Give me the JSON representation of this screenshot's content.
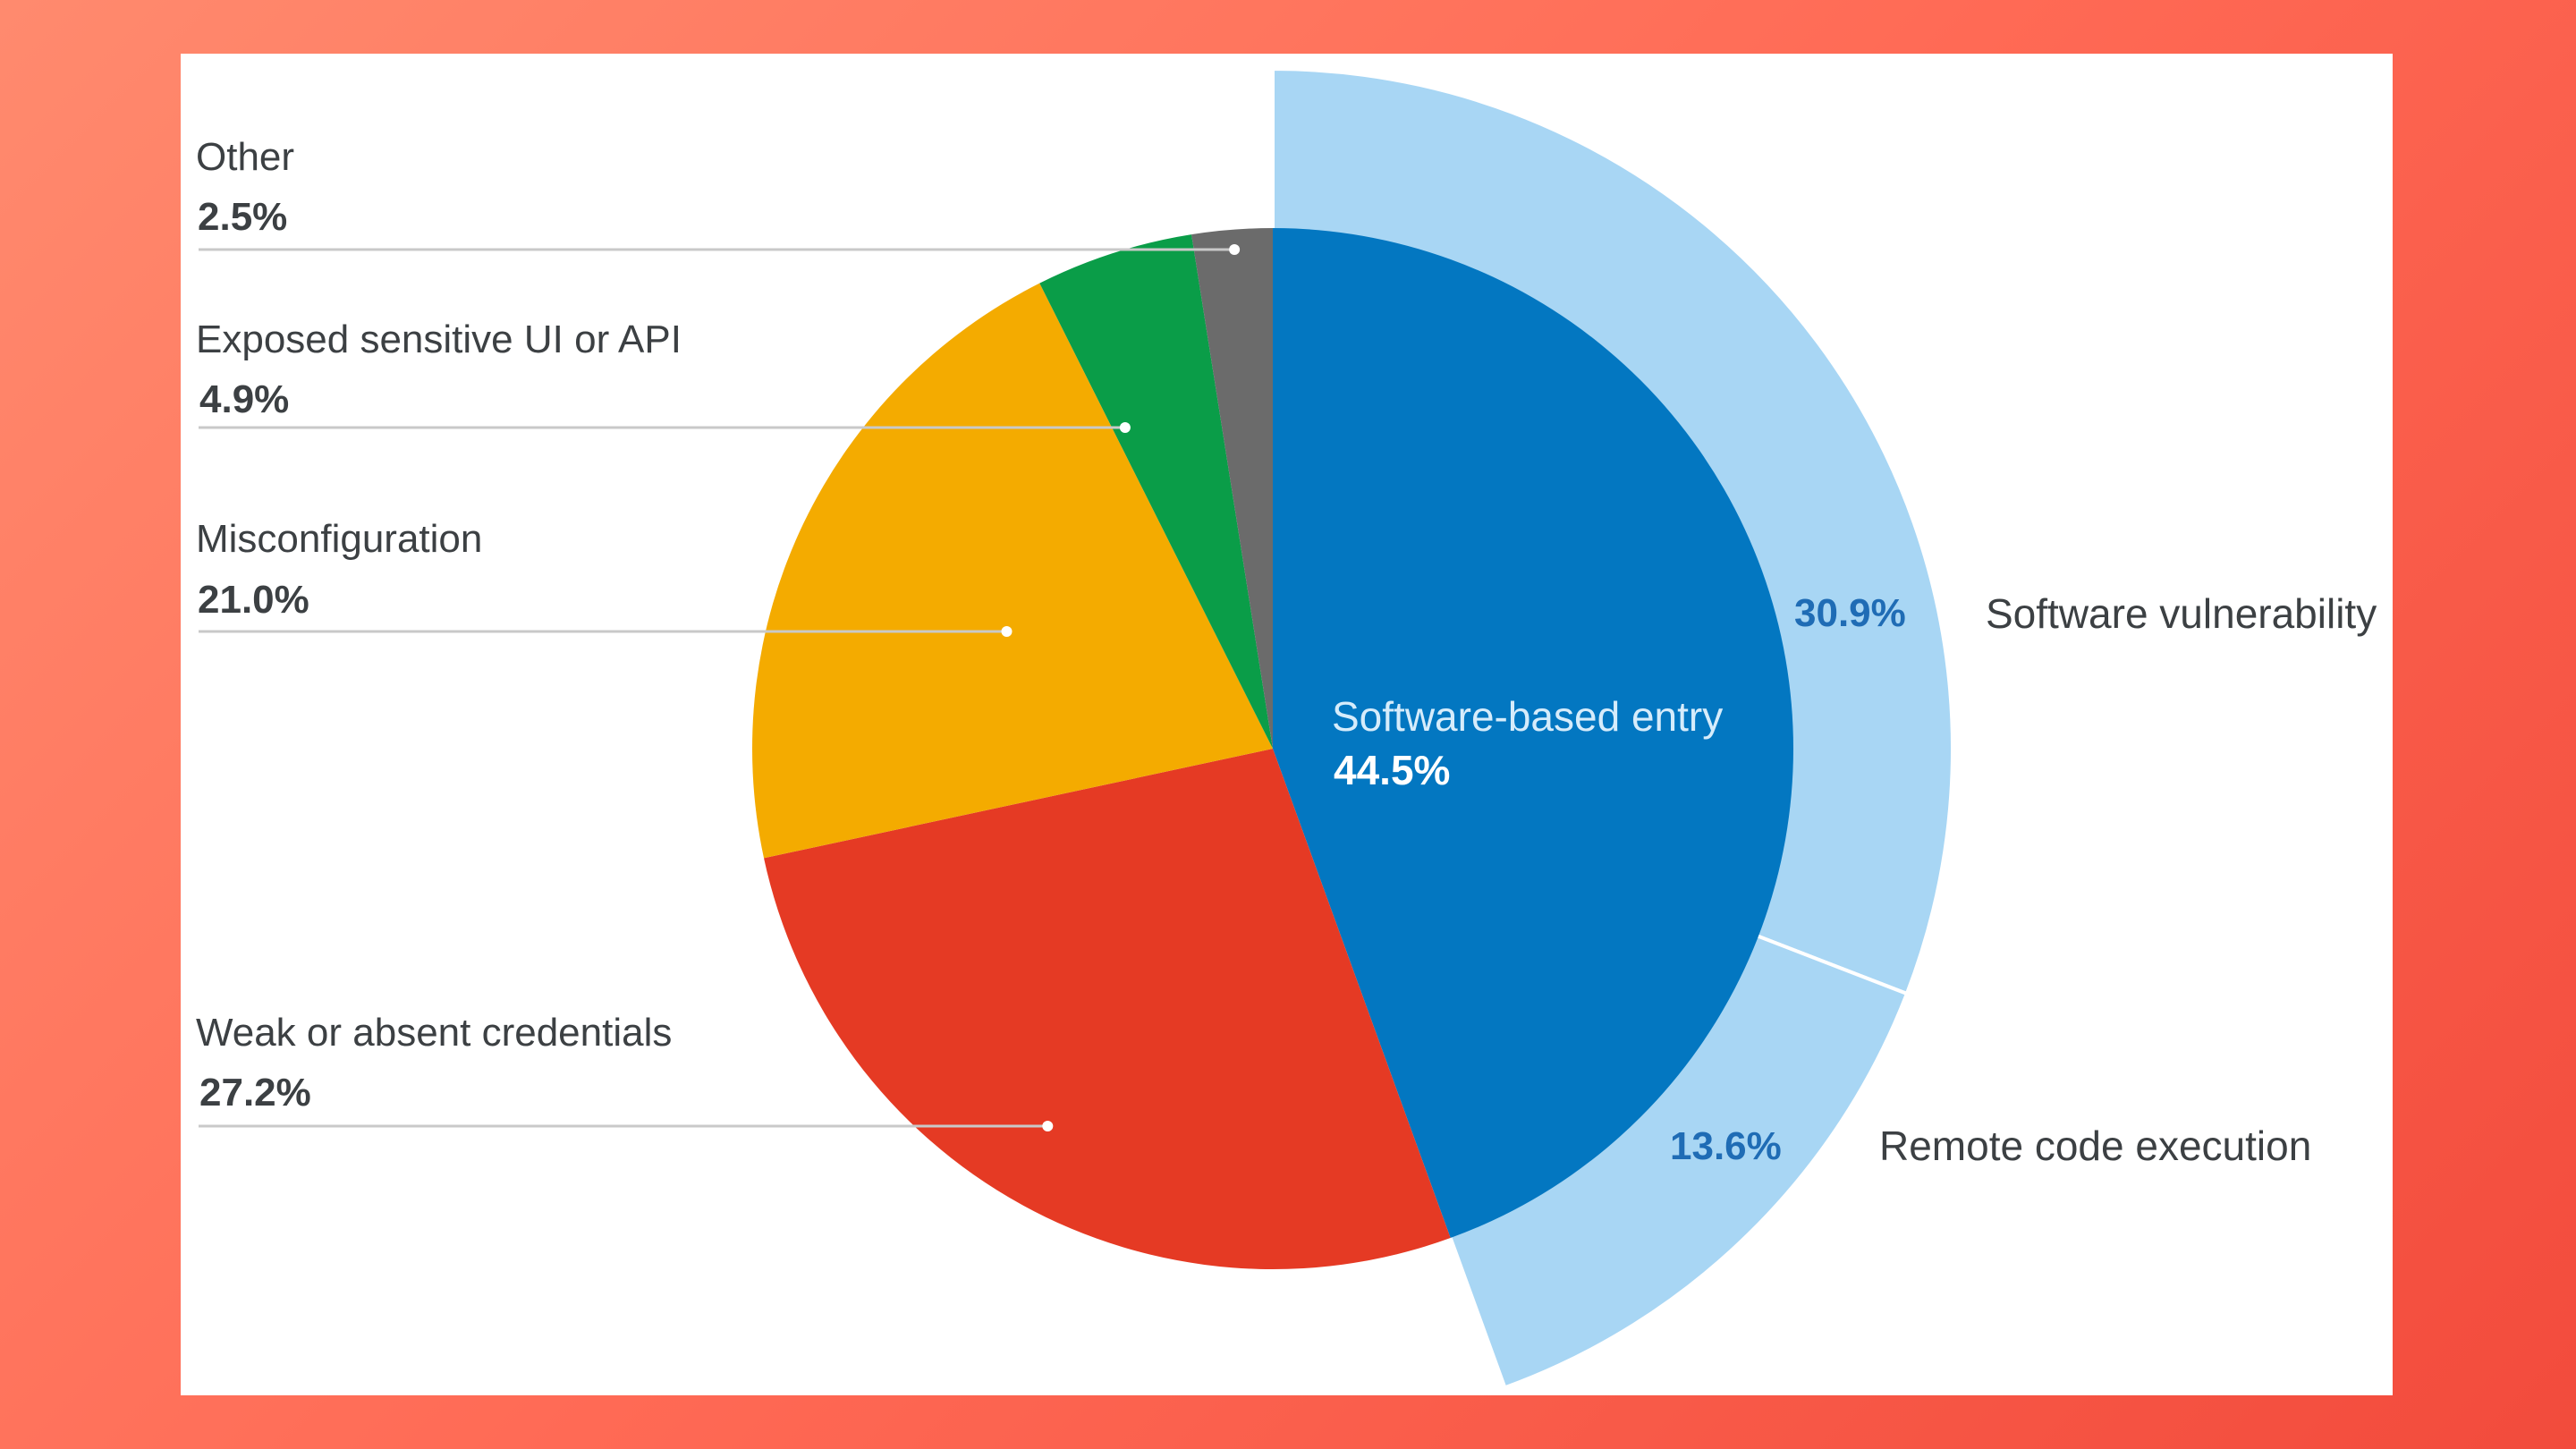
{
  "chart_data": {
    "type": "pie",
    "title": "",
    "categories": [
      "Software-based entry",
      "Weak or absent credentials",
      "Misconfiguration",
      "Exposed sensitive UI or API",
      "Other"
    ],
    "values": [
      44.5,
      27.2,
      21.0,
      4.9,
      2.5
    ],
    "value_labels": [
      "44.5%",
      "27.2%",
      "21.0%",
      "4.9%",
      "2.5%"
    ],
    "colors": [
      "#0377c1",
      "#e53a24",
      "#f4ab00",
      "#0a9d48",
      "#6b6b6b"
    ],
    "sub_breakdown": {
      "parent": "Software-based entry",
      "categories": [
        "Software vulnerability",
        "Remote code execution"
      ],
      "values": [
        30.9,
        13.6
      ],
      "value_labels": [
        "30.9%",
        "13.6%"
      ],
      "color": "#a8d6f4"
    }
  }
}
